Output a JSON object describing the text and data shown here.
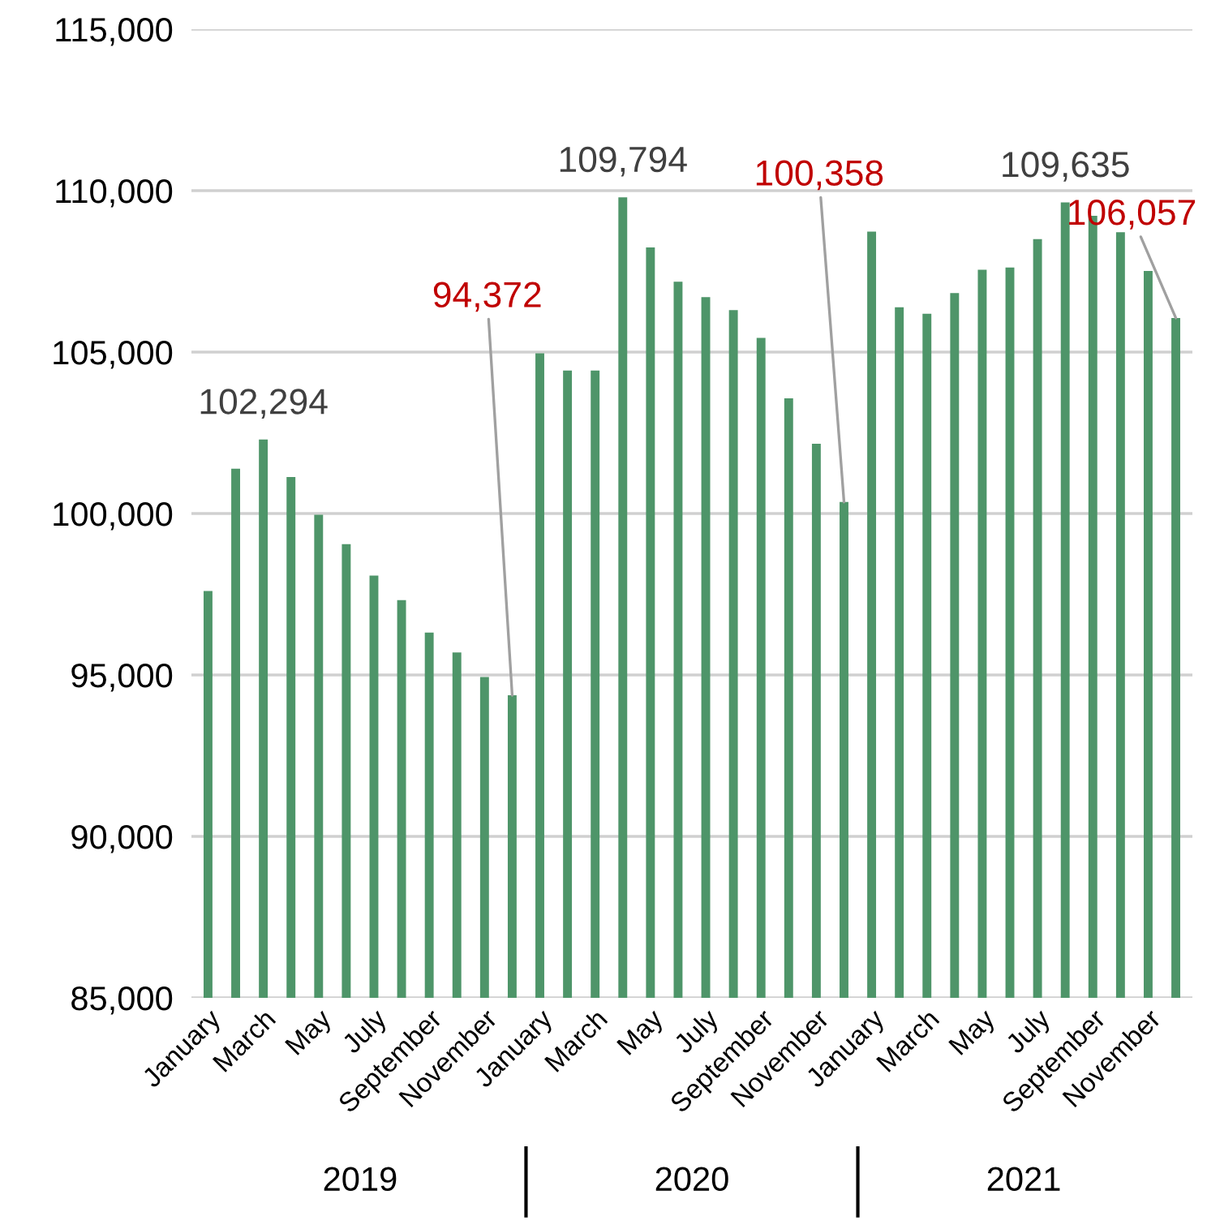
{
  "chart_data": {
    "type": "bar",
    "categories": [
      "January",
      null,
      "March",
      null,
      "May",
      null,
      "July",
      null,
      "September",
      null,
      "November",
      null,
      "January",
      null,
      "March",
      null,
      "May",
      null,
      "July",
      null,
      "September",
      null,
      "November",
      null,
      "January",
      null,
      "March",
      null,
      "May",
      null,
      "July",
      null,
      "September",
      null,
      "November",
      null
    ],
    "values": [
      97600,
      101390,
      102294,
      101130,
      99960,
      99050,
      98080,
      97320,
      96310,
      95700,
      94940,
      94372,
      104960,
      104430,
      104430,
      109794,
      108240,
      107180,
      106700,
      106300,
      105440,
      103570,
      102160,
      100358,
      108730,
      106390,
      106190,
      106830,
      107550,
      107620,
      108500,
      109635,
      109220,
      108710,
      107510,
      106057
    ],
    "color": "#4e9569",
    "value_labels": [
      null,
      null,
      "102,294",
      null,
      null,
      null,
      null,
      null,
      null,
      null,
      null,
      "94,372",
      null,
      null,
      null,
      "109,794",
      null,
      null,
      null,
      null,
      null,
      null,
      null,
      "100,358",
      null,
      null,
      null,
      null,
      null,
      null,
      null,
      "109,635",
      null,
      null,
      null,
      "106,057"
    ],
    "annotations": [
      "2019",
      "2020",
      "2021"
    ],
    "ylim": [
      85000,
      115000
    ],
    "yticks": [
      {
        "value": 85000,
        "label": "85,000"
      },
      {
        "value": 90000,
        "label": "90,000"
      },
      {
        "value": 95000,
        "label": "95,000"
      },
      {
        "value": 100000,
        "label": "100,000"
      },
      {
        "value": 105000,
        "label": "105,000"
      },
      {
        "value": 110000,
        "label": "110,000"
      },
      {
        "value": 115000,
        "label": "115,000"
      }
    ],
    "grid": "y"
  }
}
